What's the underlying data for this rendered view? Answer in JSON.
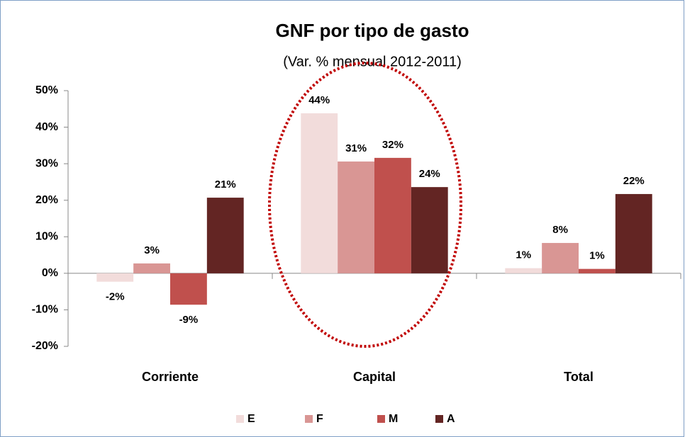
{
  "chart_data": {
    "type": "bar",
    "title": "GNF por tipo de gasto",
    "subtitle": "(Var. %  mensual 2012-2011)",
    "categories": [
      "Corriente",
      "Capital",
      "Total"
    ],
    "series": [
      {
        "name": "E",
        "color": "#f2dcdb",
        "values": [
          -2.3,
          43.8,
          1.4
        ],
        "value_labels": [
          "-2%",
          "44%",
          "1%"
        ]
      },
      {
        "name": "F",
        "color": "#d99694",
        "values": [
          2.7,
          30.6,
          8.3
        ],
        "value_labels": [
          "3%",
          "31%",
          "8%"
        ]
      },
      {
        "name": "M",
        "color": "#c0504d",
        "values": [
          -8.6,
          31.6,
          1.2
        ],
        "value_labels": [
          "-9%",
          "32%",
          "1%"
        ]
      },
      {
        "name": "A",
        "color": "#632523",
        "values": [
          20.7,
          23.6,
          21.7
        ],
        "value_labels": [
          "21%",
          "24%",
          "22%"
        ]
      }
    ],
    "ylim": [
      -20,
      50
    ],
    "yticks": [
      {
        "value": -20,
        "label": "-20%"
      },
      {
        "value": -10,
        "label": "-10%"
      },
      {
        "value": 0,
        "label": "0%"
      },
      {
        "value": 10,
        "label": "10%"
      },
      {
        "value": 20,
        "label": "20%"
      },
      {
        "value": 30,
        "label": "30%"
      },
      {
        "value": 40,
        "label": "40%"
      },
      {
        "value": 50,
        "label": "50%"
      }
    ],
    "legend": "bottom"
  }
}
